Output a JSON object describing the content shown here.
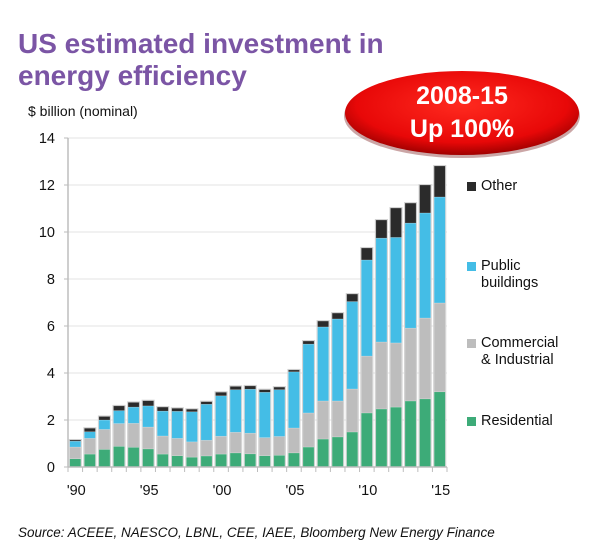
{
  "header": {
    "title": "US estimated investment in energy efficiency",
    "unit_label": "$ billion (nominal)"
  },
  "badge": {
    "line1": "2008-15",
    "line2": "Up 100%",
    "color": "#e30b0b"
  },
  "footer": {
    "source": "Source: ACEEE, NAESCO, LBNL, CEE, IAEE, Bloomberg New Energy Finance"
  },
  "legend": [
    {
      "label": "Other",
      "color": "#2b2b2b"
    },
    {
      "label": "Public\nbuildings",
      "color": "#44bde6"
    },
    {
      "label": "Commercial\n& Industrial",
      "color": "#bdbdbd"
    },
    {
      "label": "Residential",
      "color": "#3dab78"
    }
  ],
  "chart_data": {
    "type": "bar",
    "stacked": true,
    "title": "US estimated investment in energy efficiency",
    "xlabel": "",
    "ylabel": "$ billion (nominal)",
    "ylim": [
      0,
      14
    ],
    "yticks": [
      0,
      2,
      4,
      6,
      8,
      10,
      12,
      14
    ],
    "grid": true,
    "legend_position": "right",
    "categories": [
      "1990",
      "1991",
      "1992",
      "1993",
      "1994",
      "1995",
      "1996",
      "1997",
      "1998",
      "1999",
      "2000",
      "2001",
      "2002",
      "2003",
      "2004",
      "2005",
      "2006",
      "2007",
      "2008",
      "2009",
      "2010",
      "2011",
      "2012",
      "2013",
      "2014",
      "2015"
    ],
    "xtick_labels": [
      {
        "index": 0,
        "label": "'90"
      },
      {
        "index": 5,
        "label": "'95"
      },
      {
        "index": 10,
        "label": "'00"
      },
      {
        "index": 15,
        "label": "'05"
      },
      {
        "index": 20,
        "label": "'10"
      },
      {
        "index": 25,
        "label": "'15"
      }
    ],
    "series": [
      {
        "name": "Residential",
        "color": "#3dab78",
        "values": [
          0.35,
          0.55,
          0.75,
          0.88,
          0.84,
          0.77,
          0.55,
          0.48,
          0.42,
          0.47,
          0.55,
          0.6,
          0.56,
          0.48,
          0.5,
          0.6,
          0.85,
          1.19,
          1.28,
          1.49,
          2.3,
          2.47,
          2.55,
          2.81,
          2.9,
          3.2
        ]
      },
      {
        "name": "Commercial & Industrial",
        "color": "#bdbdbd",
        "values": [
          0.5,
          0.67,
          0.85,
          0.97,
          1.02,
          0.93,
          0.77,
          0.74,
          0.65,
          0.67,
          0.76,
          0.88,
          0.88,
          0.77,
          0.8,
          1.06,
          1.45,
          1.62,
          1.53,
          1.83,
          2.42,
          2.85,
          2.73,
          3.1,
          3.44,
          3.78
        ]
      },
      {
        "name": "Public buildings",
        "color": "#44bde6",
        "values": [
          0.25,
          0.28,
          0.4,
          0.55,
          0.69,
          0.9,
          1.06,
          1.15,
          1.28,
          1.53,
          1.72,
          1.81,
          1.87,
          1.93,
          1.99,
          2.39,
          2.93,
          3.15,
          3.49,
          3.72,
          4.09,
          4.42,
          4.49,
          4.47,
          4.47,
          4.51
        ]
      },
      {
        "name": "Other",
        "color": "#2b2b2b",
        "values": [
          0.05,
          0.15,
          0.15,
          0.2,
          0.2,
          0.22,
          0.17,
          0.13,
          0.11,
          0.11,
          0.15,
          0.14,
          0.14,
          0.11,
          0.11,
          0.08,
          0.13,
          0.25,
          0.25,
          0.32,
          0.51,
          0.77,
          1.25,
          0.85,
          1.19,
          1.32
        ]
      }
    ],
    "annotations": [
      "2008-15 Up 100%"
    ]
  }
}
